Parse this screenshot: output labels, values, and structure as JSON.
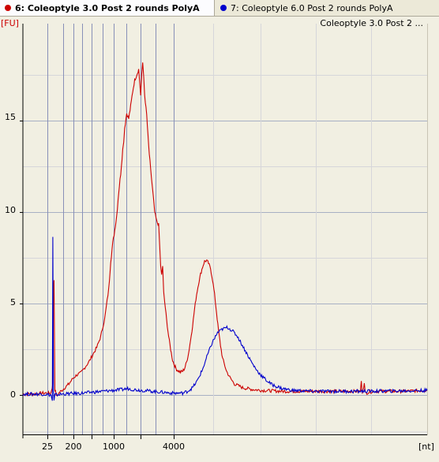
{
  "tabs": [
    {
      "label": "6: Coleoptyle 3.0 Post 2 rounds PolyA",
      "color": "#cc0000",
      "active": true
    },
    {
      "label": "7: Coleoptyle 6.0 Post 2 rounds PolyA",
      "color": "#0000cc",
      "active": false
    }
  ],
  "chart_data": {
    "type": "line",
    "title": "Coleoptyle 3.0 Post 2 ...",
    "ylabel": "[FU]",
    "xlabel": "[nt]",
    "ylim": [
      -2.2,
      20.3
    ],
    "yticks": [
      0,
      5,
      10,
      15
    ],
    "xtick_labels": [
      "25",
      "200",
      "1000",
      "4000"
    ],
    "grid": true,
    "colors": {
      "background": "#f1efe2",
      "grid": "#a8b0c4",
      "marker_line": "#8890b8",
      "axis": "#000000",
      "ylabel_color": "#cc0000"
    },
    "series": [
      {
        "name": "6: Coleoptyle 3.0 Post 2 rounds PolyA",
        "color": "#cc0000",
        "points": [
          [
            0,
            0.05
          ],
          [
            10,
            0.05
          ],
          [
            20,
            0.1
          ],
          [
            28,
            0.1
          ],
          [
            30,
            0.6
          ],
          [
            30.5,
            5.9
          ],
          [
            31.2,
            6.3
          ],
          [
            32,
            0.3
          ],
          [
            34,
            -0.1
          ],
          [
            36,
            0.1
          ],
          [
            40,
            0.3
          ],
          [
            46,
            0.6
          ],
          [
            50,
            0.9
          ],
          [
            54,
            1.1
          ],
          [
            58,
            1.2
          ],
          [
            62,
            1.5
          ],
          [
            66,
            1.8
          ],
          [
            70,
            2.2
          ],
          [
            74,
            2.6
          ],
          [
            78,
            3.2
          ],
          [
            82,
            4.2
          ],
          [
            86,
            5.8
          ],
          [
            88,
            7.3
          ],
          [
            90,
            8.3
          ],
          [
            92,
            9.0
          ],
          [
            94,
            9.8
          ],
          [
            96,
            11.1
          ],
          [
            98,
            12.1
          ],
          [
            100,
            13.4
          ],
          [
            101,
            13.9
          ],
          [
            102,
            14.6
          ],
          [
            104,
            15.4
          ],
          [
            106,
            15.1
          ],
          [
            108,
            15.8
          ],
          [
            110,
            16.6
          ],
          [
            112,
            17.2
          ],
          [
            114,
            17.5
          ],
          [
            116,
            17.8
          ],
          [
            117,
            17.1
          ],
          [
            118,
            16.4
          ],
          [
            119,
            17.5
          ],
          [
            120,
            18.1
          ],
          [
            121,
            17.4
          ],
          [
            122,
            16.4
          ],
          [
            124,
            15.3
          ],
          [
            126,
            13.6
          ],
          [
            128,
            12.3
          ],
          [
            130,
            11.2
          ],
          [
            132,
            10.0
          ],
          [
            134,
            9.5
          ],
          [
            136,
            9.3
          ],
          [
            137,
            8.2
          ],
          [
            138,
            7.0
          ],
          [
            139,
            6.6
          ],
          [
            140,
            7.0
          ],
          [
            141,
            5.6
          ],
          [
            142,
            5.1
          ],
          [
            144,
            4.1
          ],
          [
            146,
            3.2
          ],
          [
            148,
            2.5
          ],
          [
            150,
            1.9
          ],
          [
            152,
            1.6
          ],
          [
            154,
            1.4
          ],
          [
            156,
            1.3
          ],
          [
            158,
            1.25
          ],
          [
            160,
            1.3
          ],
          [
            162,
            1.45
          ],
          [
            164,
            1.8
          ],
          [
            166,
            2.3
          ],
          [
            168,
            3.0
          ],
          [
            170,
            3.8
          ],
          [
            172,
            4.7
          ],
          [
            174,
            5.5
          ],
          [
            176,
            6.1
          ],
          [
            178,
            6.6
          ],
          [
            180,
            7.0
          ],
          [
            182,
            7.3
          ],
          [
            184,
            7.35
          ],
          [
            186,
            7.2
          ],
          [
            188,
            6.9
          ],
          [
            190,
            6.3
          ],
          [
            192,
            5.5
          ],
          [
            194,
            4.5
          ],
          [
            196,
            3.5
          ],
          [
            198,
            2.7
          ],
          [
            200,
            2.0
          ],
          [
            204,
            1.3
          ],
          [
            208,
            0.9
          ],
          [
            212,
            0.6
          ],
          [
            216,
            0.5
          ],
          [
            220,
            0.4
          ],
          [
            230,
            0.3
          ],
          [
            240,
            0.25
          ],
          [
            260,
            0.2
          ],
          [
            300,
            0.2
          ],
          [
            330,
            0.2
          ],
          [
            338,
            0.2
          ],
          [
            339,
            0.7
          ],
          [
            340,
            0.15
          ],
          [
            342,
            0.6
          ],
          [
            343,
            0.1
          ],
          [
            350,
            0.2
          ],
          [
            380,
            0.2
          ],
          [
            405,
            0.25
          ]
        ]
      },
      {
        "name": "7: Coleoptyle 6.0 Post 2 rounds PolyA",
        "color": "#0000cc",
        "points": [
          [
            0,
            0.05
          ],
          [
            10,
            0.05
          ],
          [
            20,
            0.05
          ],
          [
            28,
            0.0
          ],
          [
            29.5,
            -0.3
          ],
          [
            30,
            8.6
          ],
          [
            30.6,
            0.2
          ],
          [
            31.2,
            -0.35
          ],
          [
            32,
            0.0
          ],
          [
            40,
            0.05
          ],
          [
            50,
            0.08
          ],
          [
            60,
            0.1
          ],
          [
            70,
            0.15
          ],
          [
            80,
            0.2
          ],
          [
            90,
            0.25
          ],
          [
            100,
            0.3
          ],
          [
            105,
            0.35
          ],
          [
            110,
            0.3
          ],
          [
            120,
            0.25
          ],
          [
            130,
            0.2
          ],
          [
            140,
            0.15
          ],
          [
            150,
            0.1
          ],
          [
            160,
            0.1
          ],
          [
            165,
            0.2
          ],
          [
            170,
            0.4
          ],
          [
            175,
            0.8
          ],
          [
            180,
            1.4
          ],
          [
            185,
            2.2
          ],
          [
            190,
            2.9
          ],
          [
            195,
            3.4
          ],
          [
            200,
            3.6
          ],
          [
            205,
            3.7
          ],
          [
            210,
            3.5
          ],
          [
            215,
            3.2
          ],
          [
            220,
            2.7
          ],
          [
            225,
            2.2
          ],
          [
            230,
            1.7
          ],
          [
            235,
            1.3
          ],
          [
            240,
            1.0
          ],
          [
            245,
            0.75
          ],
          [
            250,
            0.55
          ],
          [
            260,
            0.35
          ],
          [
            270,
            0.25
          ],
          [
            290,
            0.2
          ],
          [
            330,
            0.2
          ],
          [
            380,
            0.22
          ],
          [
            405,
            0.25
          ]
        ]
      }
    ]
  }
}
